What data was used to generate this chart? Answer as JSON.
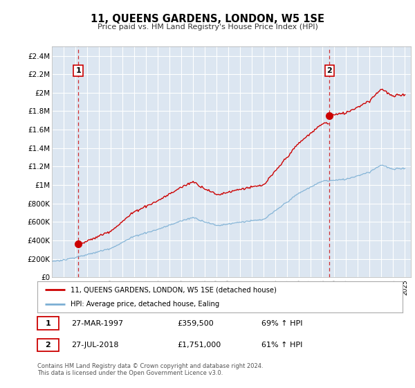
{
  "title": "11, QUEENS GARDENS, LONDON, W5 1SE",
  "subtitle": "Price paid vs. HM Land Registry's House Price Index (HPI)",
  "yticks_labels": [
    "£0",
    "£200K",
    "£400K",
    "£600K",
    "£800K",
    "£1M",
    "£1.2M",
    "£1.4M",
    "£1.6M",
    "£1.8M",
    "£2M",
    "£2.2M",
    "£2.4M"
  ],
  "yticks_values": [
    0,
    200000,
    400000,
    600000,
    800000,
    1000000,
    1200000,
    1400000,
    1600000,
    1800000,
    2000000,
    2200000,
    2400000
  ],
  "ylim": [
    0,
    2500000
  ],
  "xlim_start": 1995.0,
  "xlim_end": 2025.5,
  "background_color": "#dce6f1",
  "grid_color": "#ffffff",
  "property_color": "#cc0000",
  "hpi_color": "#7bafd4",
  "sale1_x": 1997.24,
  "sale1_y": 359500,
  "sale2_x": 2018.58,
  "sale2_y": 1751000,
  "annotation1": "1",
  "annotation2": "2",
  "legend_property": "11, QUEENS GARDENS, LONDON, W5 1SE (detached house)",
  "legend_hpi": "HPI: Average price, detached house, Ealing",
  "note1_label": "1",
  "note1_date": "27-MAR-1997",
  "note1_price": "£359,500",
  "note1_hpi": "69% ↑ HPI",
  "note2_label": "2",
  "note2_date": "27-JUL-2018",
  "note2_price": "£1,751,000",
  "note2_hpi": "61% ↑ HPI",
  "footer": "Contains HM Land Registry data © Crown copyright and database right 2024.\nThis data is licensed under the Open Government Licence v3.0.",
  "xticks": [
    1995,
    1996,
    1997,
    1998,
    1999,
    2000,
    2001,
    2002,
    2003,
    2004,
    2005,
    2006,
    2007,
    2008,
    2009,
    2010,
    2011,
    2012,
    2013,
    2014,
    2015,
    2016,
    2017,
    2018,
    2019,
    2020,
    2021,
    2022,
    2023,
    2024,
    2025
  ]
}
